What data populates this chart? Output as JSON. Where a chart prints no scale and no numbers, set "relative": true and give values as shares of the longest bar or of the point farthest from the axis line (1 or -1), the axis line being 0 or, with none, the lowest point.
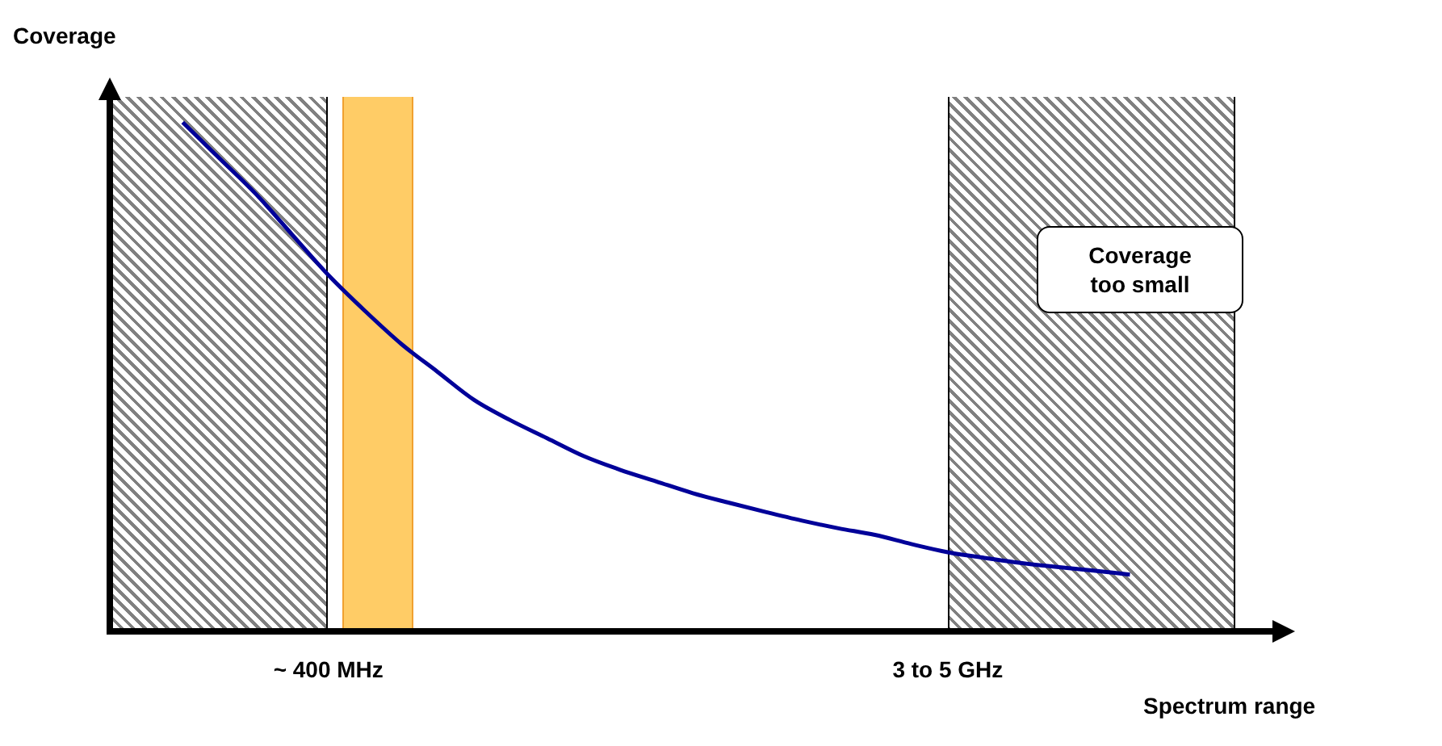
{
  "chart_data": {
    "type": "line",
    "ylabel": "Coverage",
    "xlabel": "Spectrum range",
    "relative": true,
    "categories": [
      null,
      null,
      null,
      null,
      null,
      null,
      "~ 400 MHz",
      null,
      null,
      null,
      null,
      null,
      null,
      null,
      null,
      null,
      null,
      null,
      null,
      null,
      null,
      null,
      null,
      "3 to 5 GHz",
      null,
      null,
      null,
      null,
      null,
      null,
      null,
      null,
      null
    ],
    "series": [
      {
        "color": "#000099",
        "values": [
          null,
          null,
          1.0,
          0.93,
          0.86,
          0.78,
          0.7,
          0.63,
          0.565,
          0.51,
          0.455,
          0.415,
          0.38,
          0.345,
          0.318,
          0.295,
          0.272,
          0.253,
          0.235,
          0.218,
          0.203,
          0.19,
          0.172,
          0.156,
          0.145,
          0.135,
          0.127,
          0.12,
          0.112,
          null,
          null,
          null,
          null
        ]
      }
    ],
    "annotations": [
      "Coverage too small"
    ],
    "marker": "none",
    "legend": false
  }
}
